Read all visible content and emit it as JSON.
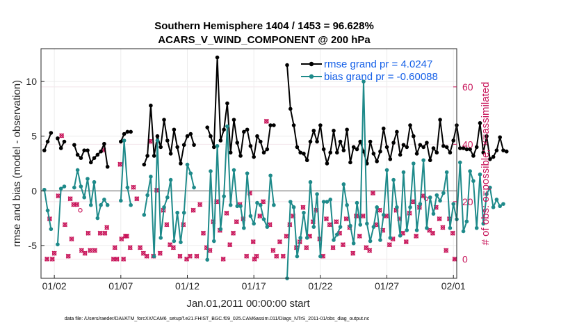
{
  "chart_data": {
    "type": "line",
    "title_line1": "Southern Hemisphere 1404 / 1453 = 96.628%",
    "title_line2": "ACARS_V_WIND_COMPONENT @ 200 hPa",
    "ylabel": "rmse and bias (model - observation)",
    "y2label": "# of obs: o=possible; ×=assimilated",
    "xlabel": "Jan.01,2011 00:00:00 start",
    "footnote": "data file: /Users/raeder/DAI/ATM_forcXX/CAM6_setup/f.e21.FHIST_BGC.f09_025.CAM6assim.011/Diags_NTrS_2011-01/obs_diag_output.nc",
    "xlim": [
      0.5,
      31.75
    ],
    "ylim": [
      -8,
      13
    ],
    "y2lim": [
      -6.7,
      73.3
    ],
    "x_ticks": [
      1.5,
      6.5,
      11.5,
      16.5,
      21.5,
      26.5,
      31.5
    ],
    "x_tick_labels": [
      "01/02",
      "01/07",
      "01/12",
      "01/17",
      "01/22",
      "01/27",
      "02/01"
    ],
    "y_ticks": [
      -5,
      0,
      5,
      10
    ],
    "y_tick_labels": [
      "-5",
      "0",
      "5",
      "10"
    ],
    "y2_ticks": [
      0,
      20,
      40,
      60
    ],
    "y2_tick_labels": [
      "0",
      "20",
      "40",
      "60"
    ],
    "zero_line": 0,
    "legend": {
      "position": "top-right",
      "entries": [
        "rmse grand pr = 4.0247",
        "bias grand pr = -0.60088"
      ]
    },
    "colors": {
      "rmse": "#000000",
      "bias": "#1e8a8a",
      "obs": "#c8155a",
      "legend_text": "#1560e8",
      "zero": "#b4b4b4"
    },
    "series": [
      {
        "name": "rmse",
        "x_start": 0.75,
        "x_step": 0.25,
        "values": [
          3.7,
          4.5,
          5.3,
          null,
          4.8,
          3.9,
          4.5,
          null,
          null,
          4.2,
          3.3,
          3.0,
          3.7,
          3.7,
          2.6,
          3.0,
          3.3,
          3.6,
          4.3,
          2.2,
          null,
          null,
          null,
          4.5,
          5.2,
          5.4,
          5.4,
          null,
          null,
          null,
          2.4,
          3.2,
          7.8,
          3.2,
          5.0,
          4.0,
          6.5,
          4.6,
          3.4,
          5.6,
          4.0,
          2.5,
          4.2,
          5.0,
          5.2,
          4.2,
          null,
          null,
          null,
          5.8,
          5.0,
          4.0,
          12.2,
          4.6,
          5.6,
          8.0,
          3.5,
          6.5,
          4.4,
          3.2,
          5.4,
          5.6,
          4.1,
          3.1,
          5.0,
          4.5,
          3.5,
          3.8,
          6.0,
          6.0,
          null,
          null,
          null,
          11.5,
          7.5,
          6.0,
          4.0,
          3.5,
          3.4,
          2.8,
          4.5,
          5.5,
          4.5,
          6.0,
          3.8,
          2.5,
          3.5,
          5.5,
          3.5,
          4.5,
          3.7,
          5.6,
          2.6,
          4.0,
          3.8,
          4.5,
          3.6,
          2.5,
          4.5,
          3.4,
          2.7,
          3.6,
          5.7,
          4.0,
          2.9,
          4.4,
          5.4,
          3.3,
          4.2,
          4.0,
          6.0,
          5.0,
          3.4,
          4.2,
          4.0,
          4.4,
          2.8,
          3.9,
          3.5,
          6.5,
          4.1,
          4.0,
          3.5,
          4.6,
          6.0,
          3.9,
          3.9,
          3.8,
          3.8,
          3.2,
          4.0,
          6.2,
          3.5,
          5.0,
          2.9,
          3.1,
          3.7,
          4.9,
          3.7,
          3.6
        ]
      },
      {
        "name": "bias",
        "x_start": 0.75,
        "x_step": 0.25,
        "values": [
          0.1,
          -1.8,
          -3.5,
          null,
          -4.9,
          0.2,
          0.4,
          null,
          null,
          0.3,
          1.9,
          0.4,
          -0.6,
          1.1,
          -1.3,
          0.8,
          -2.5,
          -1.3,
          -0.8,
          -1.3,
          null,
          null,
          null,
          -0.9,
          4.6,
          0.3,
          -1.3,
          null,
          null,
          null,
          -2.2,
          -0.4,
          1.3,
          -6.0,
          4.6,
          -4.3,
          -1.5,
          -0.6,
          1.0,
          -4.6,
          -2.0,
          -4.7,
          -2.0,
          2.4,
          1.6,
          0.3,
          null,
          null,
          null,
          -6.3,
          1.8,
          -4.6,
          4.1,
          -3.5,
          -0.5,
          5.9,
          -1.3,
          1.9,
          -1.4,
          -1.4,
          -3.4,
          1.6,
          -2.3,
          -3.0,
          -1.1,
          -1.3,
          -2.6,
          -3.3,
          1.4,
          -1.3,
          null,
          null,
          null,
          -8.0,
          -1.0,
          -1.5,
          -6.0,
          -4.3,
          -2.0,
          -4.3,
          0.8,
          -3.3,
          -0.3,
          -6.0,
          -1.0,
          -1.0,
          -0.8,
          -4.5,
          -4.0,
          -3.3,
          0.6,
          -1.3,
          -3.2,
          -4.8,
          -1.1,
          -3.1,
          10.0,
          -3.0,
          -4.6,
          -3.3,
          -1.5,
          -4.5,
          -2.2,
          1.9,
          -4.3,
          1.0,
          -1.5,
          -4.1,
          1.7,
          -3.6,
          -1.5,
          2.5,
          -3.6,
          -1.2,
          2.8,
          -3.4,
          -0.6,
          -2.1,
          -0.4,
          -0.9,
          -0.2,
          1.7,
          -3.4,
          -1.2,
          -2.6,
          2.6,
          -3.7,
          -2.8,
          1.8,
          0.9,
          -3.4,
          1.5,
          -3.0,
          -0.3,
          0.3,
          -1.5,
          -0.8,
          -1.4,
          -1.2
        ]
      }
    ],
    "obs_points": [
      {
        "x": 0.95,
        "v": 0,
        "kind": "both"
      },
      {
        "x": 1.15,
        "v": 14,
        "kind": "both"
      },
      {
        "x": 1.35,
        "v": 0,
        "kind": "both"
      },
      {
        "x": 1.5,
        "v": 2,
        "kind": "both"
      },
      {
        "x": 1.8,
        "v": 22,
        "kind": "both"
      },
      {
        "x": 2.05,
        "v": 43,
        "kind": "both"
      },
      {
        "x": 2.3,
        "v": 12,
        "kind": "both"
      },
      {
        "x": 2.55,
        "v": 1,
        "kind": "both"
      },
      {
        "x": 2.7,
        "v": 21,
        "kind": "both"
      },
      {
        "x": 2.8,
        "v": 7,
        "kind": "both"
      },
      {
        "x": 2.95,
        "v": 19,
        "kind": "both"
      },
      {
        "x": 3.2,
        "v": 19,
        "kind": "both"
      },
      {
        "x": 3.45,
        "v": 17,
        "kind": "possible"
      },
      {
        "x": 3.55,
        "v": 3,
        "kind": "both"
      },
      {
        "x": 3.8,
        "v": 2,
        "kind": "both"
      },
      {
        "x": 4.05,
        "v": 9,
        "kind": "both"
      },
      {
        "x": 4.2,
        "v": 3,
        "kind": "both"
      },
      {
        "x": 4.55,
        "v": 3,
        "kind": "both"
      },
      {
        "x": 4.95,
        "v": 9,
        "kind": "both"
      },
      {
        "x": 5.2,
        "v": 38,
        "kind": "both"
      },
      {
        "x": 5.3,
        "v": 9,
        "kind": "both"
      },
      {
        "x": 5.45,
        "v": 11,
        "kind": "both"
      },
      {
        "x": 5.95,
        "v": 0,
        "kind": "both"
      },
      {
        "x": 6.05,
        "v": 4,
        "kind": "both"
      },
      {
        "x": 6.2,
        "v": 0,
        "kind": "both"
      },
      {
        "x": 6.45,
        "v": 33,
        "kind": "both"
      },
      {
        "x": 6.55,
        "v": 7,
        "kind": "both"
      },
      {
        "x": 6.7,
        "v": 0,
        "kind": "both"
      },
      {
        "x": 6.85,
        "v": 8,
        "kind": "both"
      },
      {
        "x": 6.95,
        "v": 8,
        "kind": "both"
      },
      {
        "x": 7.2,
        "v": 4,
        "kind": "both"
      },
      {
        "x": 7.45,
        "v": 25,
        "kind": "both"
      },
      {
        "x": 7.7,
        "v": 21,
        "kind": "both"
      },
      {
        "x": 7.95,
        "v": 4,
        "kind": "both"
      },
      {
        "x": 8.2,
        "v": 2,
        "kind": "both"
      },
      {
        "x": 8.45,
        "v": 1,
        "kind": "both"
      },
      {
        "x": 8.7,
        "v": 41,
        "kind": "both"
      },
      {
        "x": 8.95,
        "v": 1,
        "kind": "both"
      },
      {
        "x": 9.2,
        "v": 24,
        "kind": "both"
      },
      {
        "x": 9.45,
        "v": 2,
        "kind": "both"
      },
      {
        "x": 9.7,
        "v": 17,
        "kind": "both"
      },
      {
        "x": 9.95,
        "v": 12,
        "kind": "both"
      },
      {
        "x": 10.2,
        "v": 5,
        "kind": "both"
      },
      {
        "x": 10.45,
        "v": 4,
        "kind": "both"
      },
      {
        "x": 10.95,
        "v": 1,
        "kind": "both"
      },
      {
        "x": 11.2,
        "v": 12,
        "kind": "both"
      },
      {
        "x": 11.45,
        "v": 0,
        "kind": "both"
      },
      {
        "x": 11.7,
        "v": 1,
        "kind": "both"
      },
      {
        "x": 11.95,
        "v": 17,
        "kind": "both"
      },
      {
        "x": 12.2,
        "v": 1,
        "kind": "both"
      },
      {
        "x": 12.45,
        "v": 19,
        "kind": "both"
      },
      {
        "x": 12.7,
        "v": 9,
        "kind": "both"
      },
      {
        "x": 12.95,
        "v": 4,
        "kind": "both"
      },
      {
        "x": 13.2,
        "v": 3,
        "kind": "both"
      },
      {
        "x": 13.45,
        "v": 13,
        "kind": "both"
      },
      {
        "x": 13.7,
        "v": 20,
        "kind": "both"
      },
      {
        "x": 13.95,
        "v": 10,
        "kind": "both"
      },
      {
        "x": 14.2,
        "v": 0,
        "kind": "both"
      },
      {
        "x": 14.45,
        "v": 16,
        "kind": "both"
      },
      {
        "x": 14.7,
        "v": 5,
        "kind": "both"
      },
      {
        "x": 14.95,
        "v": 9,
        "kind": "both"
      },
      {
        "x": 15.2,
        "v": 13,
        "kind": "both"
      },
      {
        "x": 15.45,
        "v": 19,
        "kind": "both"
      },
      {
        "x": 15.7,
        "v": 14,
        "kind": "both"
      },
      {
        "x": 15.95,
        "v": 1,
        "kind": "both"
      },
      {
        "x": 16.2,
        "v": 23,
        "kind": "both"
      },
      {
        "x": 16.45,
        "v": 6,
        "kind": "both"
      },
      {
        "x": 16.55,
        "v": 0,
        "kind": "both"
      },
      {
        "x": 16.7,
        "v": 1,
        "kind": "both"
      },
      {
        "x": 16.95,
        "v": 15,
        "kind": "both"
      },
      {
        "x": 17.2,
        "v": 20,
        "kind": "both"
      },
      {
        "x": 17.45,
        "v": 48,
        "kind": "both"
      },
      {
        "x": 17.7,
        "v": 12,
        "kind": "both"
      },
      {
        "x": 17.95,
        "v": 3,
        "kind": "both"
      },
      {
        "x": 18.2,
        "v": 1,
        "kind": "both"
      },
      {
        "x": 18.45,
        "v": 6,
        "kind": "both"
      },
      {
        "x": 18.7,
        "v": 1,
        "kind": "both"
      },
      {
        "x": 18.95,
        "v": 8,
        "kind": "both"
      },
      {
        "x": 19.2,
        "v": 12,
        "kind": "both"
      },
      {
        "x": 19.45,
        "v": 15,
        "kind": "both"
      },
      {
        "x": 19.7,
        "v": 4,
        "kind": "both"
      },
      {
        "x": 19.95,
        "v": 6,
        "kind": "both"
      },
      {
        "x": 20.2,
        "v": 18,
        "kind": "both"
      },
      {
        "x": 20.45,
        "v": 4,
        "kind": "both"
      },
      {
        "x": 20.7,
        "v": 8,
        "kind": "both"
      },
      {
        "x": 20.95,
        "v": 13,
        "kind": "both"
      },
      {
        "x": 21.2,
        "v": 17,
        "kind": "both"
      },
      {
        "x": 21.45,
        "v": 7,
        "kind": "both"
      },
      {
        "x": 21.7,
        "v": 1,
        "kind": "both"
      },
      {
        "x": 21.95,
        "v": 14,
        "kind": "both"
      },
      {
        "x": 22.2,
        "v": 12,
        "kind": "both"
      },
      {
        "x": 22.45,
        "v": 4,
        "kind": "both"
      },
      {
        "x": 22.7,
        "v": 13,
        "kind": "both"
      },
      {
        "x": 22.95,
        "v": 9,
        "kind": "both"
      },
      {
        "x": 23.2,
        "v": 5,
        "kind": "both"
      },
      {
        "x": 23.45,
        "v": 14,
        "kind": "both"
      },
      {
        "x": 23.7,
        "v": 11,
        "kind": "both"
      },
      {
        "x": 23.95,
        "v": 2,
        "kind": "both"
      },
      {
        "x": 24.2,
        "v": 15,
        "kind": "both"
      },
      {
        "x": 24.45,
        "v": 8,
        "kind": "both"
      },
      {
        "x": 24.7,
        "v": 15,
        "kind": "both"
      },
      {
        "x": 24.95,
        "v": 4,
        "kind": "both"
      },
      {
        "x": 25.2,
        "v": 3,
        "kind": "both"
      },
      {
        "x": 25.45,
        "v": 23,
        "kind": "both"
      },
      {
        "x": 25.7,
        "v": 12,
        "kind": "both"
      },
      {
        "x": 25.95,
        "v": 17,
        "kind": "both"
      },
      {
        "x": 26.2,
        "v": 10,
        "kind": "both"
      },
      {
        "x": 26.45,
        "v": 15,
        "kind": "both"
      },
      {
        "x": 26.7,
        "v": 5,
        "kind": "both"
      },
      {
        "x": 26.95,
        "v": 7,
        "kind": "both"
      },
      {
        "x": 27.2,
        "v": 17,
        "kind": "both"
      },
      {
        "x": 27.45,
        "v": 14,
        "kind": "both"
      },
      {
        "x": 27.7,
        "v": 9,
        "kind": "both"
      },
      {
        "x": 27.95,
        "v": 6,
        "kind": "both"
      },
      {
        "x": 28.2,
        "v": 16,
        "kind": "both"
      },
      {
        "x": 28.45,
        "v": 20,
        "kind": "both"
      },
      {
        "x": 28.7,
        "v": 8,
        "kind": "both"
      },
      {
        "x": 28.95,
        "v": 18,
        "kind": "both"
      },
      {
        "x": 29.2,
        "v": 22,
        "kind": "both"
      },
      {
        "x": 29.45,
        "v": 21,
        "kind": "possible"
      },
      {
        "x": 29.7,
        "v": 10,
        "kind": "both"
      },
      {
        "x": 29.95,
        "v": 9,
        "kind": "both"
      },
      {
        "x": 30.2,
        "v": 18,
        "kind": "both"
      },
      {
        "x": 30.45,
        "v": 14,
        "kind": "both"
      },
      {
        "x": 30.7,
        "v": 11,
        "kind": "both"
      },
      {
        "x": 30.95,
        "v": 3,
        "kind": "both"
      },
      {
        "x": 31.2,
        "v": 14,
        "kind": "both"
      },
      {
        "x": 31.45,
        "v": 9,
        "kind": "both"
      },
      {
        "x": 31.6,
        "v": 0,
        "kind": "both"
      }
    ]
  }
}
